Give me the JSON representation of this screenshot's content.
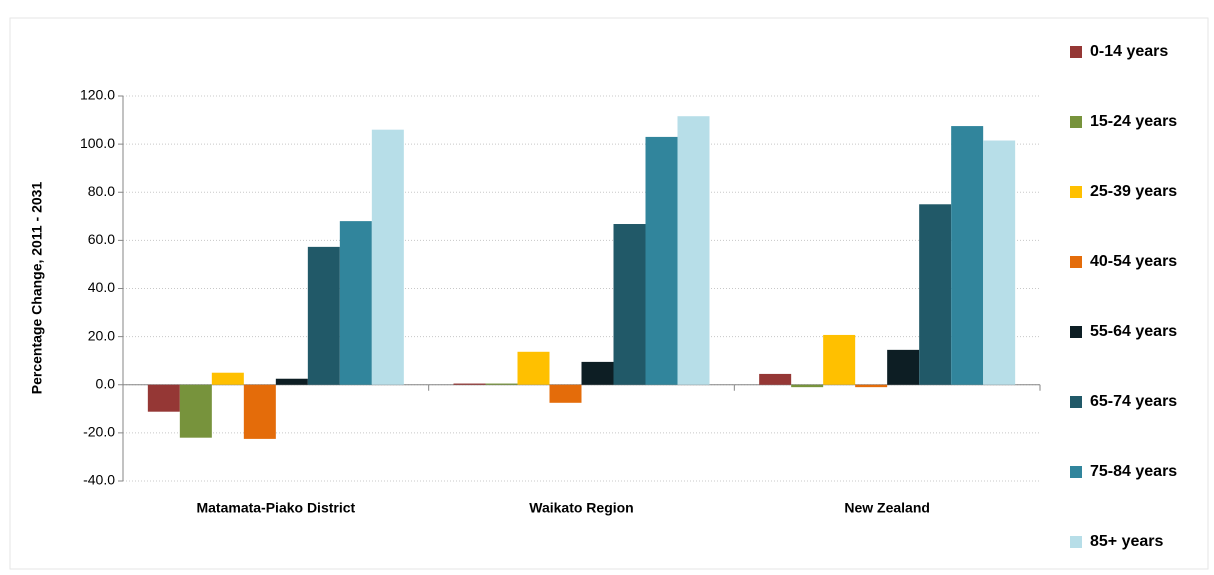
{
  "chart_data": {
    "type": "bar",
    "y_label": "Percentage Change, 2011 - 2031",
    "categories": [
      "Matamata-Piako District",
      "Waikato Region",
      "New Zealand"
    ],
    "series": [
      {
        "name": "0-14 years",
        "color": "#953735",
        "values": [
          -11.2,
          0.5,
          4.5
        ]
      },
      {
        "name": "15-24 years",
        "color": "#77933c",
        "values": [
          -22,
          0.5,
          -1
        ]
      },
      {
        "name": "25-39 years",
        "color": "#ffc000",
        "values": [
          5,
          13.7,
          20.7
        ]
      },
      {
        "name": "40-54 years",
        "color": "#e46c0a",
        "values": [
          -22.5,
          -7.5,
          -1
        ]
      },
      {
        "name": "55-64 years",
        "color": "#0d1e24",
        "values": [
          2.5,
          9.5,
          14.5
        ]
      },
      {
        "name": "65-74 years",
        "color": "#215968",
        "values": [
          57.3,
          66.8,
          75
        ]
      },
      {
        "name": "75-84 years",
        "color": "#31859c",
        "values": [
          68,
          103,
          107.5
        ]
      },
      {
        "name": "85+ years",
        "color": "#b7dee8",
        "values": [
          106,
          111.6,
          101.5
        ]
      }
    ],
    "ylim": [
      -40,
      120
    ],
    "yticks": [
      {
        "value": -40,
        "label": "-40.0"
      },
      {
        "value": -20,
        "label": "-20.0"
      },
      {
        "value": 0,
        "label": "0.0"
      },
      {
        "value": 20,
        "label": "20.0"
      },
      {
        "value": 40,
        "label": "40.0"
      },
      {
        "value": 60,
        "label": "60.0"
      },
      {
        "value": 80,
        "label": "80.0"
      },
      {
        "value": 100,
        "label": "100.0"
      },
      {
        "value": 120,
        "label": "120.0"
      }
    ],
    "grid": true,
    "legend": "right"
  }
}
